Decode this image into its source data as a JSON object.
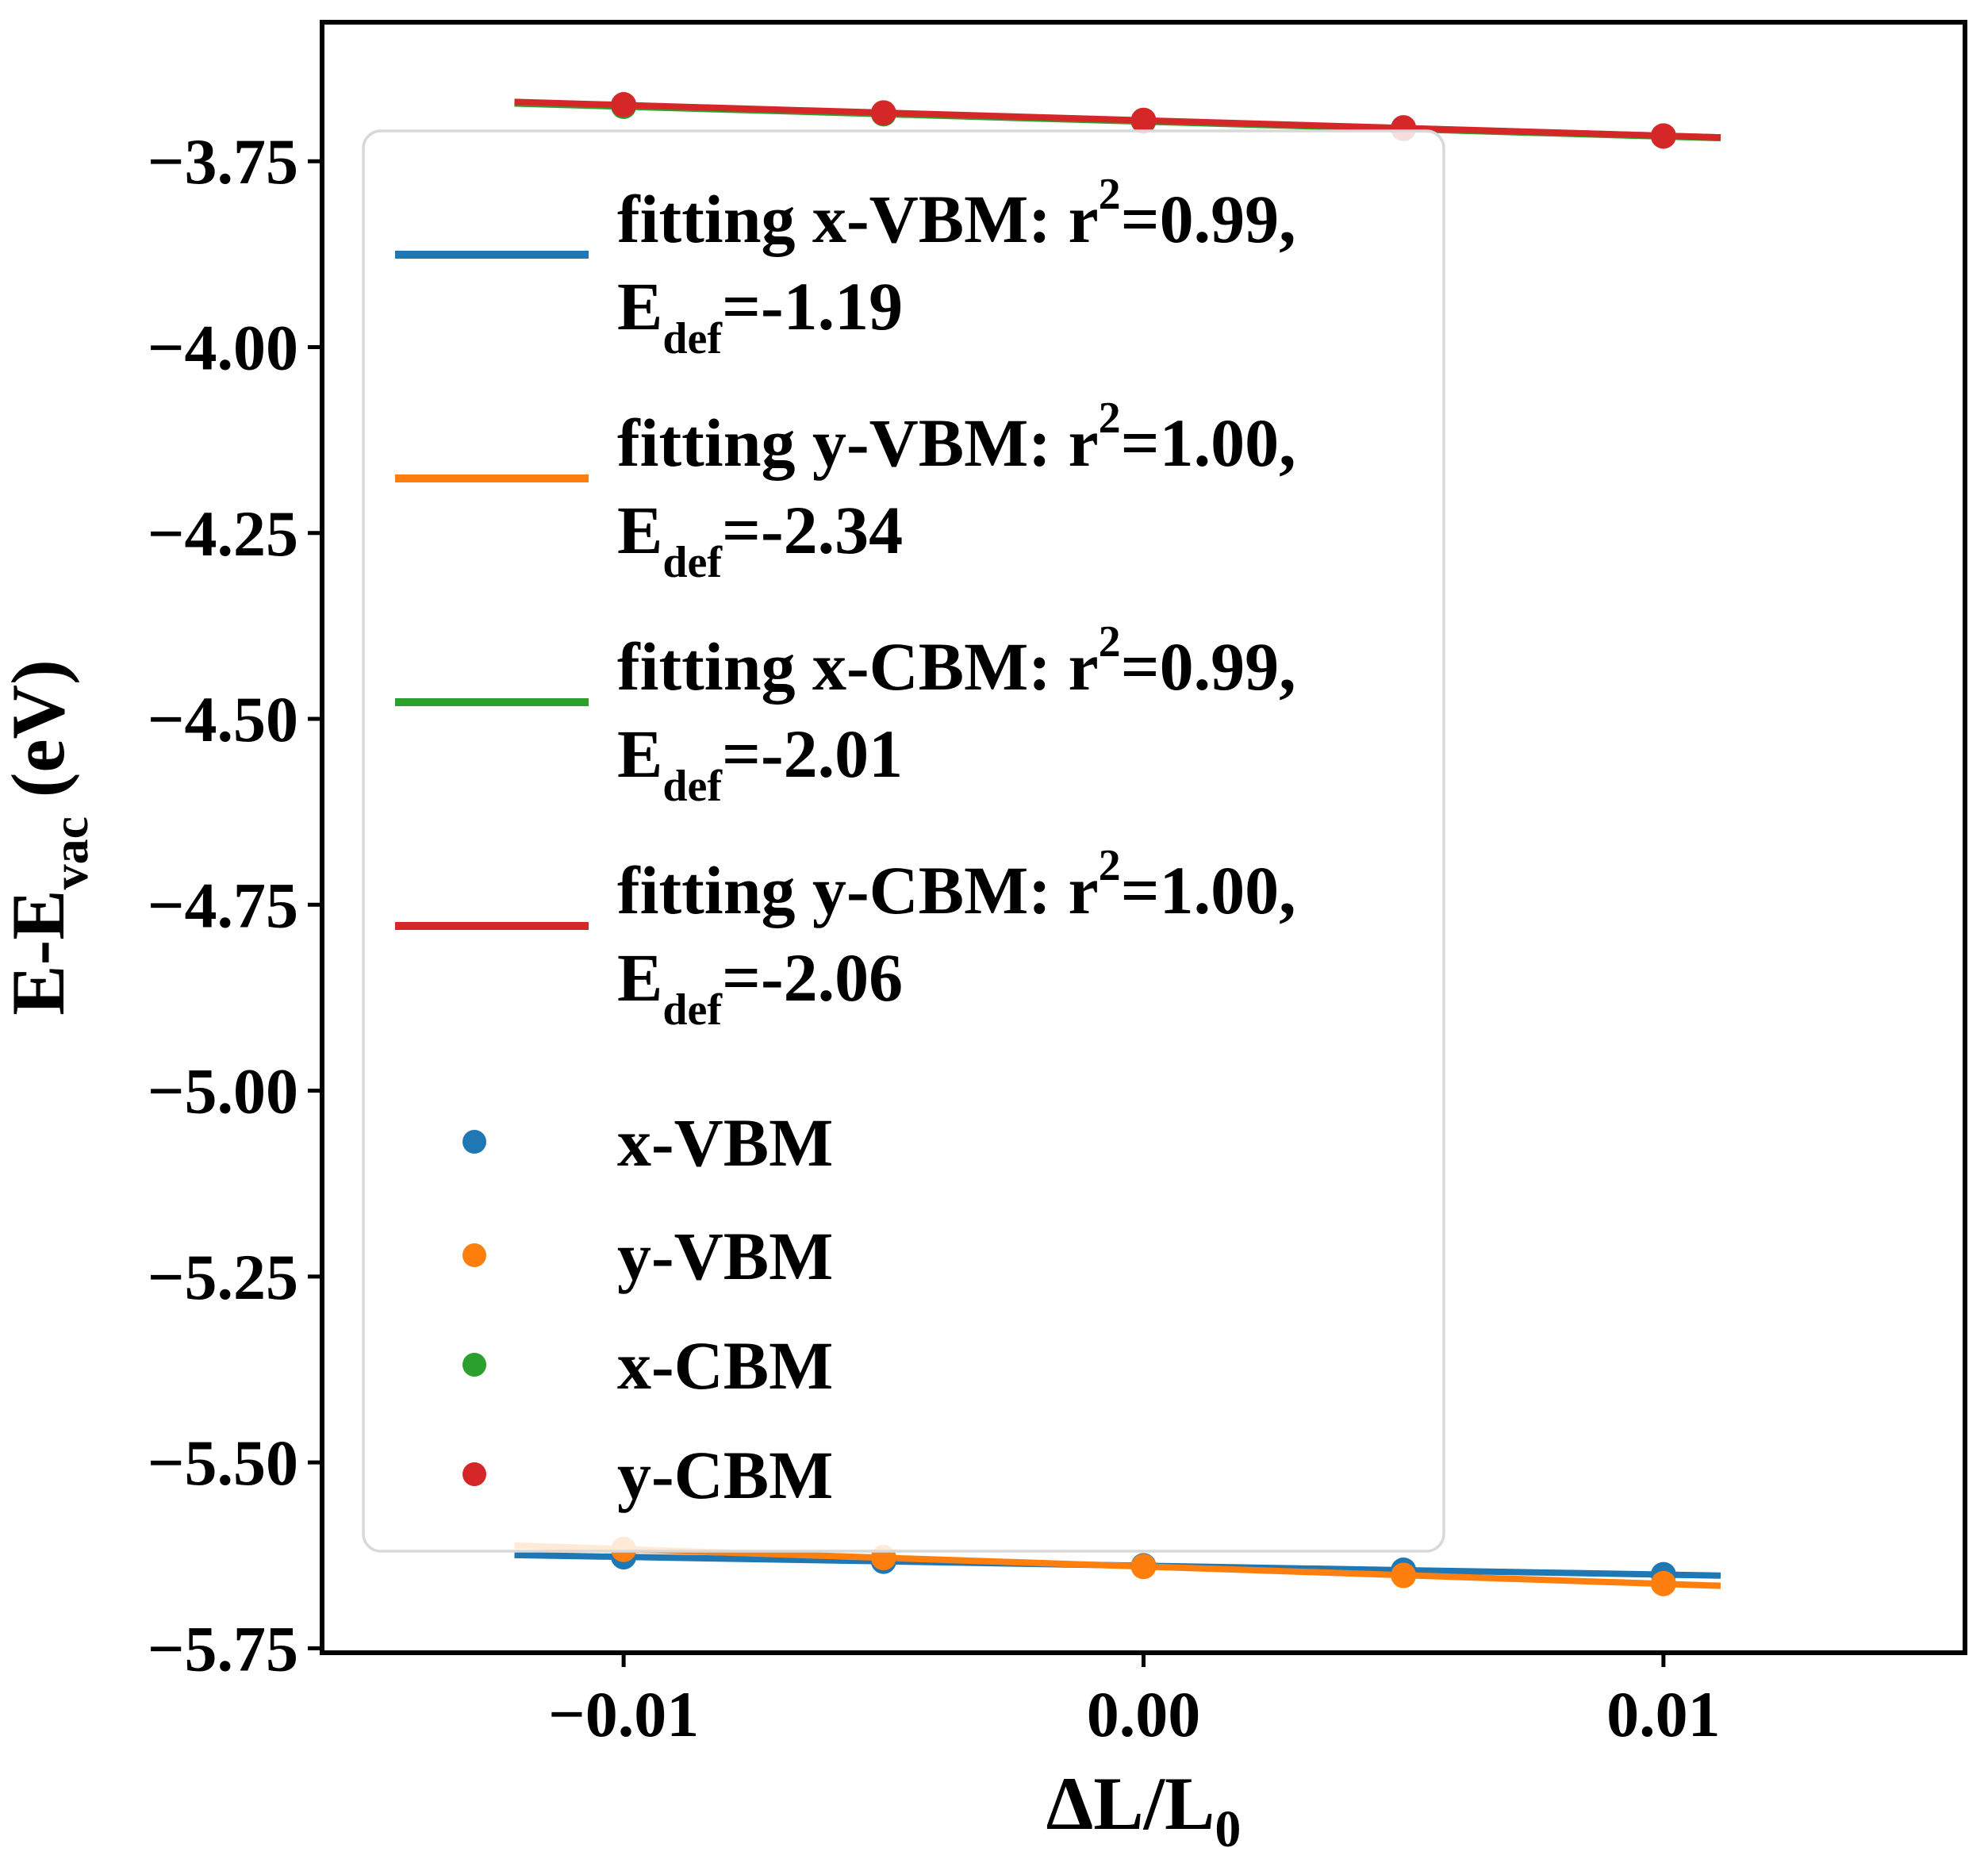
{
  "chart_data": {
    "type": "scatter",
    "title": "",
    "xlabel": {
      "main": "ΔL/L",
      "sub": "0"
    },
    "ylabel": {
      "pre": "E-E",
      "sub": "vac",
      "post": " (eV)"
    },
    "xlim": [
      -0.0158,
      0.0158
    ],
    "ylim": [
      -5.756,
      -3.563
    ],
    "grid": false,
    "x": [
      -0.01,
      -0.005,
      0.0,
      0.005,
      0.01
    ],
    "series": [
      {
        "name": "x-VBM",
        "color": "#1f77b4",
        "values": [
          -5.627,
          -5.633,
          -5.639,
          -5.645,
          -5.651
        ]
      },
      {
        "name": "y-VBM",
        "color": "#ff7f0e",
        "values": [
          -5.617,
          -5.628,
          -5.64,
          -5.652,
          -5.663
        ]
      },
      {
        "name": "x-CBM",
        "color": "#2ca02c",
        "values": [
          -3.674,
          -3.684,
          -3.694,
          -3.704,
          -3.714
        ]
      },
      {
        "name": "y-CBM",
        "color": "#d62728",
        "values": [
          -3.674,
          -3.685,
          -3.695,
          -3.705,
          -3.716
        ]
      }
    ],
    "fits": [
      {
        "series": "x-VBM",
        "color": "#1f77b4",
        "intercept": -5.639,
        "slope": -1.19,
        "r2": "0.99",
        "edef": "-1.19"
      },
      {
        "series": "y-VBM",
        "color": "#ff7f0e",
        "intercept": -5.64,
        "slope": -2.34,
        "r2": "1.00",
        "edef": "-2.34"
      },
      {
        "series": "x-CBM",
        "color": "#2ca02c",
        "intercept": -3.694,
        "slope": -2.01,
        "r2": "0.99",
        "edef": "-2.01"
      },
      {
        "series": "y-CBM",
        "color": "#d62728",
        "intercept": -3.695,
        "slope": -2.06,
        "r2": "1.00",
        "edef": "-2.06"
      }
    ],
    "fit_x_range": [
      -0.0121,
      0.0111
    ],
    "xticks": {
      "values": [
        -0.01,
        0.0,
        0.01
      ],
      "labels": [
        "−0.01",
        "0.00",
        "0.01"
      ]
    },
    "yticks": {
      "values": [
        -3.75,
        -4.0,
        -4.25,
        -4.5,
        -4.75,
        -5.0,
        -5.25,
        -5.5,
        -5.75
      ],
      "labels": [
        "−3.75",
        "−4.00",
        "−4.25",
        "−4.50",
        "−4.75",
        "−5.00",
        "−5.25",
        "−5.50",
        "−5.75"
      ]
    },
    "legend": {
      "position": "upper-left-inside",
      "fit_label_prefix": "fitting",
      "fit_entries": [
        {
          "series": "x-VBM",
          "color": "#1f77b4",
          "r2": "0.99",
          "edef": "-1.19",
          "text_line1": "fitting x-VBM: r²=0.99,",
          "text_line2": "E_def=-1.19"
        },
        {
          "series": "y-VBM",
          "color": "#ff7f0e",
          "r2": "1.00",
          "edef": "-2.34",
          "text_line1": "fitting y-VBM: r²=1.00,",
          "text_line2": "E_def=-2.34"
        },
        {
          "series": "x-CBM",
          "color": "#2ca02c",
          "r2": "0.99",
          "edef": "-2.01",
          "text_line1": "fitting x-CBM: r²=0.99,",
          "text_line2": "E_def=-2.01"
        },
        {
          "series": "y-CBM",
          "color": "#d62728",
          "r2": "1.00",
          "edef": "-2.06",
          "text_line1": "fitting y-CBM: r²=1.00,",
          "text_line2": "E_def=-2.06"
        }
      ],
      "marker_entries": [
        {
          "label": "x-VBM",
          "color": "#1f77b4"
        },
        {
          "label": "y-VBM",
          "color": "#ff7f0e"
        },
        {
          "label": "x-CBM",
          "color": "#2ca02c"
        },
        {
          "label": "y-CBM",
          "color": "#d62728"
        }
      ]
    },
    "colors": {
      "axes": "#000000",
      "legend_border": "#d8d8d8",
      "legend_fill_alpha": 0.84
    }
  }
}
